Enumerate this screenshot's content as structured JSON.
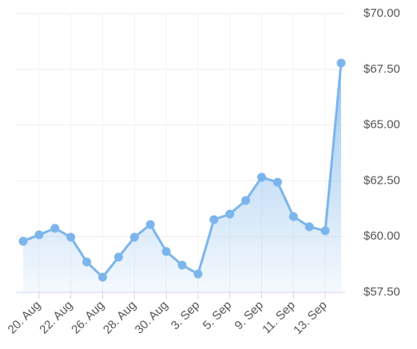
{
  "chart_data": {
    "type": "area",
    "categories": [
      null,
      "20. Aug",
      null,
      "22. Aug",
      null,
      "26. Aug",
      null,
      "28. Aug",
      null,
      "30. Aug",
      null,
      "3. Sep",
      null,
      "5. Sep",
      null,
      "9. Sep",
      null,
      "11. Sep",
      null,
      "13. Sep",
      null
    ],
    "values": [
      59.79,
      60.08,
      60.37,
      59.97,
      58.86,
      58.18,
      59.08,
      59.97,
      60.54,
      59.33,
      58.72,
      58.32,
      60.76,
      61.01,
      61.62,
      62.66,
      62.44,
      60.9,
      60.44,
      60.26,
      67.78
    ],
    "color": "#7cb5ec",
    "ylim": [
      57.5,
      70
    ],
    "yticks": [
      {
        "value": 57.5,
        "label": "$57.50"
      },
      {
        "value": 60,
        "label": "$60.00"
      },
      {
        "value": 62.5,
        "label": "$62.50"
      },
      {
        "value": 65,
        "label": "$65.00"
      },
      {
        "value": 67.5,
        "label": "$67.50"
      },
      {
        "value": 70,
        "label": "$70.00"
      }
    ],
    "grid": true
  }
}
